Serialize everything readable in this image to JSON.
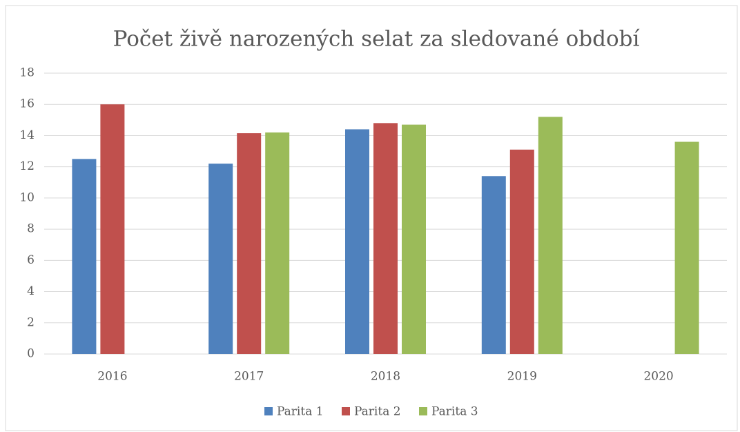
{
  "chart_data": {
    "type": "bar",
    "title": "Počet živě narozených selat za sledované období",
    "categories": [
      "2016",
      "2017",
      "2018",
      "2019",
      "2020"
    ],
    "series": [
      {
        "name": "Parita 1",
        "color": "#4f81bd",
        "values": [
          12.5,
          12.2,
          14.4,
          11.4,
          null
        ]
      },
      {
        "name": "Parita 2",
        "color": "#c0504d",
        "values": [
          16.0,
          14.15,
          14.8,
          13.1,
          null
        ]
      },
      {
        "name": "Parita 3",
        "color": "#9bbb59",
        "values": [
          null,
          14.2,
          14.7,
          15.2,
          13.6
        ]
      }
    ],
    "ylim": [
      0,
      18
    ],
    "yticks": [
      0,
      2,
      4,
      6,
      8,
      10,
      12,
      14,
      16,
      18
    ],
    "grid": true,
    "legend": "bottom"
  }
}
